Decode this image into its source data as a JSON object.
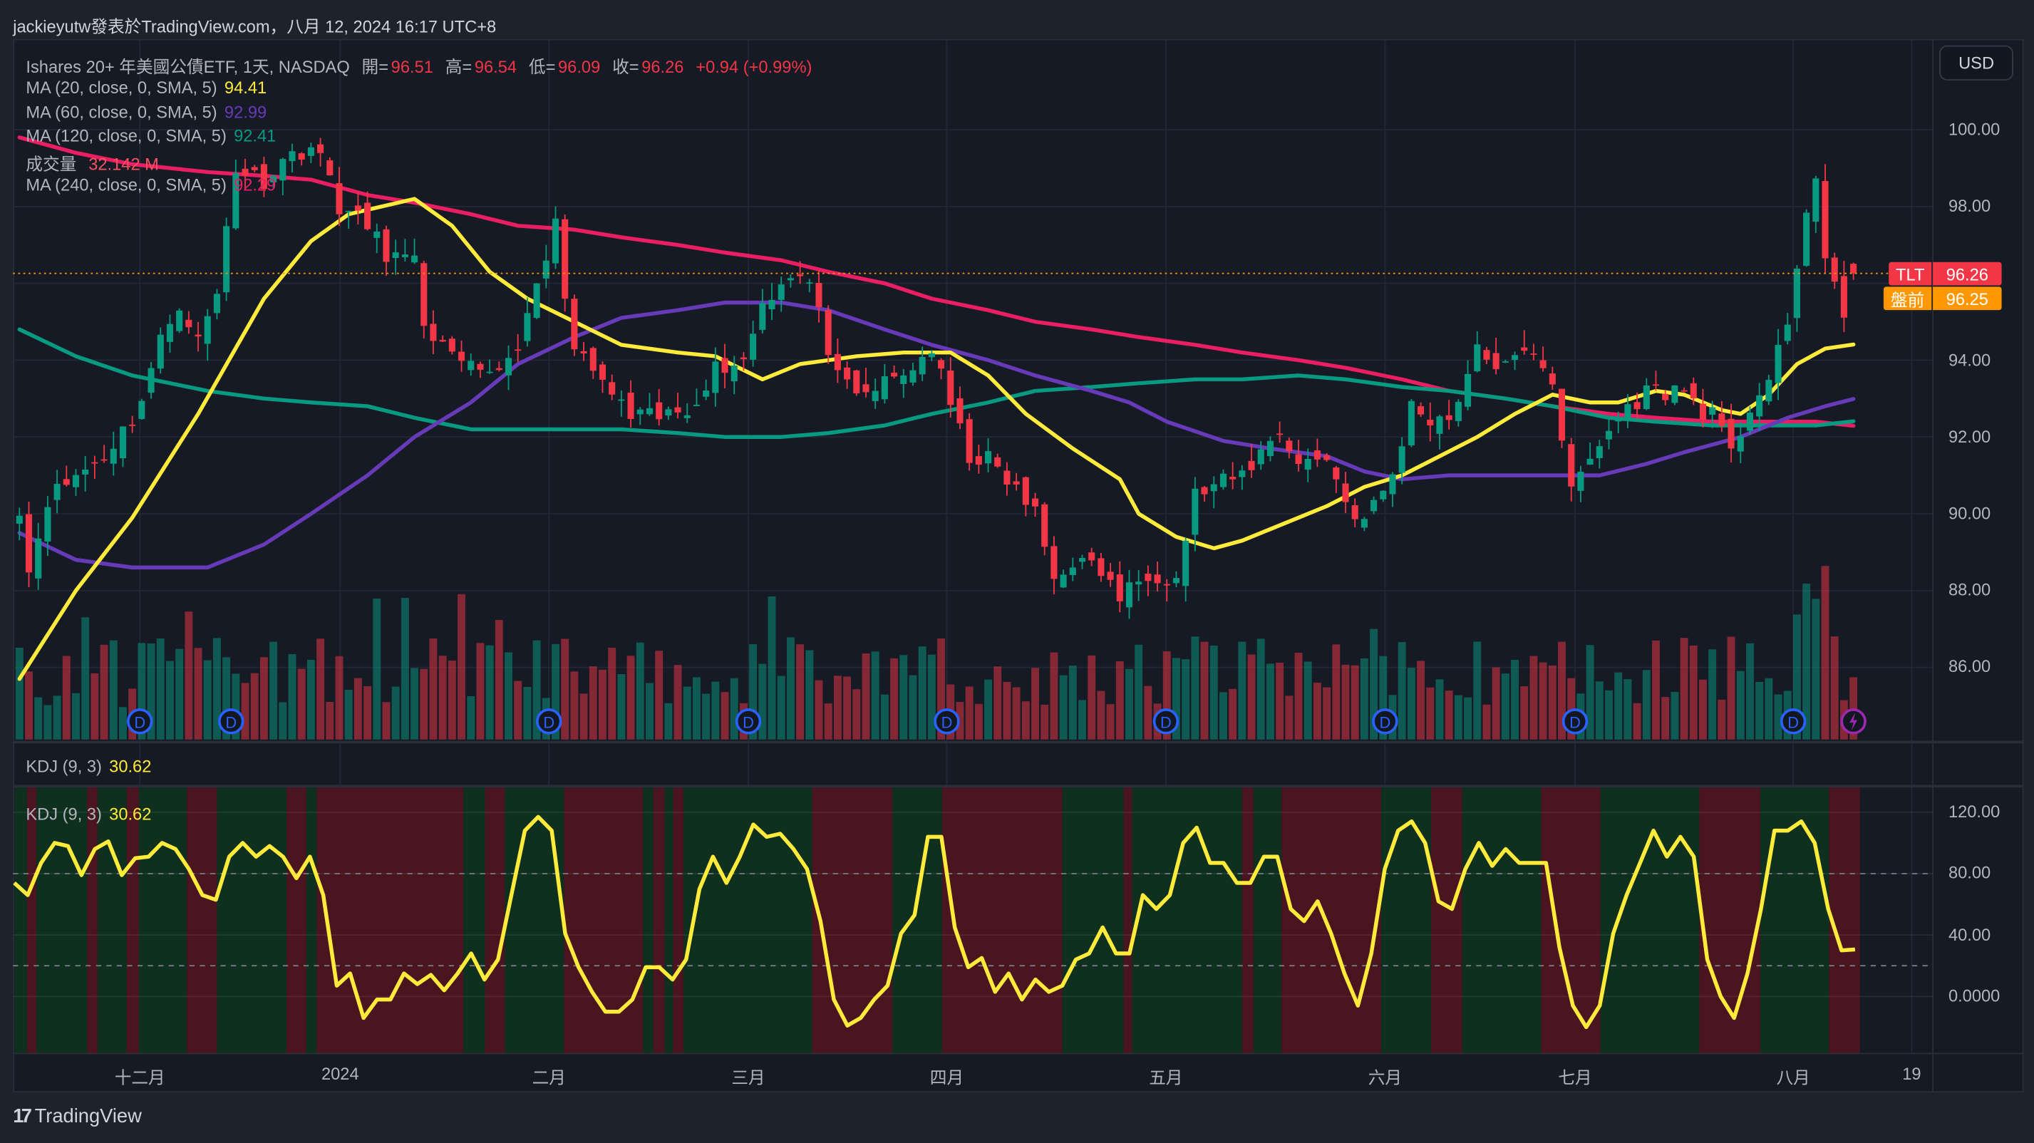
{
  "title_bar": "jackieyutw發表於TradingView.com，八月 12, 2024 16:17 UTC+8",
  "legend": {
    "symbol": "Ishares 20+ 年美國公債ETF, 1天, NASDAQ",
    "open_label": "開=",
    "open": "96.51",
    "high_label": "高=",
    "high": "96.54",
    "low_label": "低=",
    "low": "96.09",
    "close_label": "收=",
    "close": "96.26",
    "change": "+0.94 (+0.99%)",
    "ma20_label": "MA (20, close, 0, SMA, 5)",
    "ma20_value": "94.41",
    "ma60_label": "MA (60, close, 0, SMA, 5)",
    "ma60_value": "92.99",
    "ma120_label": "MA (120, close, 0, SMA, 5)",
    "ma120_value": "92.41",
    "volume_label": "成交量",
    "volume_value": "32.142 M",
    "ma240_label": "MA (240, close, 0, SMA, 5)",
    "ma240_value": "92.29"
  },
  "currency_button": "USD",
  "price_badges": {
    "symbol": "TLT",
    "last": "96.26",
    "premarket_label": "盤前",
    "premarket": "96.25"
  },
  "kdj_legend": {
    "label": "KDJ (9, 3)",
    "value": "30.62"
  },
  "footer_brand": "TradingView",
  "footer_logo": "17",
  "colors": {
    "up": "#089981",
    "down": "#f23645",
    "ma20": "#ffeb3b",
    "ma60": "#673ab7",
    "ma120": "#089981",
    "ma240": "#e91e63",
    "premarket": "#ff9800",
    "bull_band": "#0f301e",
    "bear_band": "#4a151e"
  },
  "chart_data": {
    "type": "candlestick",
    "symbol": "TLT",
    "timeframe": "1D",
    "price_axis": {
      "ylim": [
        84.8,
        102.3
      ],
      "ticks": [
        "100.00",
        "98.00",
        "94.00",
        "92.00",
        "90.00",
        "88.00",
        "86.00"
      ],
      "tick_values": [
        100,
        98,
        94,
        92,
        90,
        88,
        86
      ]
    },
    "time_axis": [
      {
        "label": "十二月",
        "day": 12.8
      },
      {
        "label": "2024",
        "day": 34.1
      },
      {
        "label": "二月",
        "day": 56.3
      },
      {
        "label": "三月",
        "day": 77.5
      },
      {
        "label": "四月",
        "day": 98.6
      },
      {
        "label": "五月",
        "day": 121.9
      },
      {
        "label": "六月",
        "day": 145.2
      },
      {
        "label": "七月",
        "day": 165.4
      },
      {
        "label": "八月",
        "day": 188.6
      },
      {
        "label": "19",
        "day": 201.2
      }
    ],
    "num_days": 196,
    "close_keyframes": [
      [
        0,
        90.2
      ],
      [
        1,
        88.5
      ],
      [
        3,
        90.4
      ],
      [
        6,
        91
      ],
      [
        9,
        91.5
      ],
      [
        12,
        92.5
      ],
      [
        13,
        93
      ],
      [
        15,
        94.5
      ],
      [
        17,
        95.5
      ],
      [
        19,
        94.5
      ],
      [
        21,
        95.7
      ],
      [
        22,
        97.5
      ],
      [
        23,
        99
      ],
      [
        26,
        98.7
      ],
      [
        28,
        99.2
      ],
      [
        31,
        99.6
      ],
      [
        33,
        98.8
      ],
      [
        34,
        98
      ],
      [
        37,
        97.5
      ],
      [
        39,
        96.8
      ],
      [
        42,
        96.5
      ],
      [
        43,
        95
      ],
      [
        46,
        94
      ],
      [
        49,
        93.6
      ],
      [
        52,
        94
      ],
      [
        54,
        95
      ],
      [
        57,
        97.5
      ],
      [
        59,
        94.2
      ],
      [
        61,
        93.7
      ],
      [
        65,
        92.5
      ],
      [
        68,
        92.5
      ],
      [
        71,
        92.7
      ],
      [
        74,
        93.8
      ],
      [
        77,
        94
      ],
      [
        79,
        95.5
      ],
      [
        82,
        96.3
      ],
      [
        84,
        96
      ],
      [
        87,
        93.5
      ],
      [
        89,
        93
      ],
      [
        92,
        93.4
      ],
      [
        94,
        93.6
      ],
      [
        97,
        94.3
      ],
      [
        99,
        92.8
      ],
      [
        101,
        91.5
      ],
      [
        103,
        91.4
      ],
      [
        106,
        90.6
      ],
      [
        108,
        90
      ],
      [
        110,
        88.3
      ],
      [
        112,
        88.8
      ],
      [
        115,
        88.5
      ],
      [
        117,
        87.8
      ],
      [
        120,
        88.5
      ],
      [
        123,
        88.3
      ],
      [
        125,
        90.5
      ],
      [
        128,
        90.8
      ],
      [
        130,
        91
      ],
      [
        134,
        92.2
      ],
      [
        136,
        91.3
      ],
      [
        139,
        91.5
      ],
      [
        141,
        90.3
      ],
      [
        143,
        89.8
      ],
      [
        146,
        91
      ],
      [
        148,
        92.8
      ],
      [
        150,
        92.5
      ],
      [
        152,
        92.5
      ],
      [
        155,
        94.2
      ],
      [
        158,
        93.8
      ],
      [
        161,
        94.3
      ],
      [
        163,
        93.5
      ],
      [
        165,
        90.5
      ],
      [
        166,
        91
      ],
      [
        168,
        91.8
      ],
      [
        170,
        92.5
      ],
      [
        173,
        93.2
      ],
      [
        177,
        93.2
      ],
      [
        179,
        92.7
      ],
      [
        180,
        92.6
      ],
      [
        182,
        91.5
      ],
      [
        184,
        92.8
      ],
      [
        186,
        93.5
      ],
      [
        188,
        94.8
      ],
      [
        190,
        98
      ],
      [
        191,
        98.7
      ],
      [
        192,
        96.6
      ],
      [
        193,
        95.8
      ],
      [
        194,
        95.2
      ],
      [
        195,
        96.26
      ]
    ],
    "last_candle": {
      "open": 96.51,
      "high": 96.54,
      "low": 96.09,
      "close": 96.26,
      "volume_m": 32.142
    },
    "ma_series": {
      "ma20": [
        [
          0,
          85.7
        ],
        [
          6,
          88
        ],
        [
          12,
          89.9
        ],
        [
          19,
          92.6
        ],
        [
          26,
          95.6
        ],
        [
          31,
          97.1
        ],
        [
          35,
          97.8
        ],
        [
          42,
          98.2
        ],
        [
          46,
          97.5
        ],
        [
          50,
          96.3
        ],
        [
          54,
          95.6
        ],
        [
          59,
          95
        ],
        [
          64,
          94.4
        ],
        [
          70,
          94.2
        ],
        [
          74,
          94.1
        ],
        [
          79,
          93.5
        ],
        [
          83,
          93.9
        ],
        [
          89,
          94.1
        ],
        [
          94,
          94.2
        ],
        [
          99,
          94.2
        ],
        [
          103,
          93.6
        ],
        [
          107,
          92.6
        ],
        [
          112,
          91.7
        ],
        [
          117,
          90.9
        ],
        [
          119,
          90
        ],
        [
          123,
          89.4
        ],
        [
          127,
          89.1
        ],
        [
          130,
          89.3
        ],
        [
          134,
          89.7
        ],
        [
          139,
          90.2
        ],
        [
          143,
          90.7
        ],
        [
          147,
          91
        ],
        [
          151,
          91.5
        ],
        [
          155,
          92
        ],
        [
          159,
          92.6
        ],
        [
          163,
          93.1
        ],
        [
          167,
          92.9
        ],
        [
          170,
          92.9
        ],
        [
          174,
          93.2
        ],
        [
          177,
          93.1
        ],
        [
          181,
          92.7
        ],
        [
          183,
          92.6
        ],
        [
          186,
          93.1
        ],
        [
          189,
          93.9
        ],
        [
          192,
          94.3
        ],
        [
          195,
          94.41
        ]
      ],
      "ma60": [
        [
          0,
          89.5
        ],
        [
          6,
          88.8
        ],
        [
          12,
          88.6
        ],
        [
          20,
          88.6
        ],
        [
          26,
          89.2
        ],
        [
          31,
          90
        ],
        [
          37,
          91
        ],
        [
          42,
          92
        ],
        [
          48,
          92.9
        ],
        [
          53,
          93.9
        ],
        [
          59,
          94.6
        ],
        [
          64,
          95.1
        ],
        [
          70,
          95.3
        ],
        [
          75,
          95.5
        ],
        [
          81,
          95.5
        ],
        [
          86,
          95.3
        ],
        [
          92,
          94.8
        ],
        [
          97,
          94.4
        ],
        [
          103,
          94
        ],
        [
          108,
          93.6
        ],
        [
          114,
          93.2
        ],
        [
          118,
          92.9
        ],
        [
          122,
          92.4
        ],
        [
          128,
          91.9
        ],
        [
          133,
          91.7
        ],
        [
          139,
          91.5
        ],
        [
          143,
          91.1
        ],
        [
          147,
          90.9
        ],
        [
          152,
          91
        ],
        [
          158,
          91
        ],
        [
          163,
          91
        ],
        [
          168,
          91
        ],
        [
          173,
          91.3
        ],
        [
          177,
          91.6
        ],
        [
          183,
          92
        ],
        [
          188,
          92.5
        ],
        [
          192,
          92.8
        ],
        [
          195,
          92.99
        ]
      ],
      "ma120": [
        [
          0,
          94.8
        ],
        [
          6,
          94.1
        ],
        [
          12,
          93.6
        ],
        [
          20,
          93.2
        ],
        [
          26,
          93
        ],
        [
          31,
          92.9
        ],
        [
          37,
          92.8
        ],
        [
          42,
          92.5
        ],
        [
          48,
          92.2
        ],
        [
          53,
          92.2
        ],
        [
          59,
          92.2
        ],
        [
          64,
          92.2
        ],
        [
          70,
          92.1
        ],
        [
          75,
          92
        ],
        [
          81,
          92
        ],
        [
          86,
          92.1
        ],
        [
          92,
          92.3
        ],
        [
          97,
          92.6
        ],
        [
          103,
          92.9
        ],
        [
          108,
          93.2
        ],
        [
          114,
          93.3
        ],
        [
          119,
          93.4
        ],
        [
          125,
          93.5
        ],
        [
          130,
          93.5
        ],
        [
          136,
          93.6
        ],
        [
          141,
          93.5
        ],
        [
          147,
          93.3
        ],
        [
          152,
          93.2
        ],
        [
          158,
          93
        ],
        [
          163,
          92.8
        ],
        [
          169,
          92.5
        ],
        [
          174,
          92.4
        ],
        [
          180,
          92.3
        ],
        [
          186,
          92.3
        ],
        [
          191,
          92.3
        ],
        [
          195,
          92.41
        ]
      ],
      "ma240": [
        [
          0,
          99.8
        ],
        [
          6,
          99.4
        ],
        [
          12,
          99.1
        ],
        [
          20,
          98.9
        ],
        [
          26,
          98.8
        ],
        [
          31,
          98.7
        ],
        [
          37,
          98.3
        ],
        [
          42,
          98.1
        ],
        [
          48,
          97.8
        ],
        [
          53,
          97.5
        ],
        [
          59,
          97.4
        ],
        [
          64,
          97.2
        ],
        [
          70,
          97
        ],
        [
          75,
          96.8
        ],
        [
          81,
          96.6
        ],
        [
          86,
          96.3
        ],
        [
          92,
          96
        ],
        [
          97,
          95.6
        ],
        [
          103,
          95.3
        ],
        [
          108,
          95
        ],
        [
          114,
          94.8
        ],
        [
          119,
          94.6
        ],
        [
          125,
          94.4
        ],
        [
          130,
          94.2
        ],
        [
          136,
          94
        ],
        [
          141,
          93.8
        ],
        [
          147,
          93.5
        ],
        [
          152,
          93.2
        ],
        [
          158,
          93
        ],
        [
          163,
          92.8
        ],
        [
          169,
          92.6
        ],
        [
          174,
          92.5
        ],
        [
          180,
          92.4
        ],
        [
          186,
          92.4
        ],
        [
          191,
          92.4
        ],
        [
          195,
          92.29
        ]
      ]
    },
    "dividend_marker_days": [
      12.8,
      22.5,
      56.3,
      77.5,
      98.6,
      121.9,
      145.2,
      165.4,
      188.6
    ],
    "dividend_marker_label": "D",
    "event_marker_day": 195,
    "kdj": {
      "axis_ticks": [
        "120.00",
        "80.00",
        "40.00",
        "0.0000"
      ],
      "tick_values": [
        120,
        80,
        40,
        0
      ],
      "levels": [
        80,
        20
      ],
      "ylim": [
        -37,
        136
      ],
      "values": [
        74,
        66,
        87,
        100,
        98,
        79,
        96,
        101,
        79,
        90,
        91,
        100,
        96,
        83,
        66,
        63,
        91,
        100,
        91,
        98,
        91,
        77,
        91,
        66,
        7,
        15,
        -14,
        -2,
        -2,
        15,
        8,
        14,
        4,
        15,
        28,
        11,
        24,
        66,
        108,
        117,
        108,
        41,
        19,
        3,
        -10,
        -10,
        -2,
        19,
        19,
        11,
        24,
        70,
        91,
        74,
        91,
        112,
        104,
        106,
        96,
        83,
        49,
        -2,
        -19,
        -14,
        -2,
        7,
        41,
        53,
        104,
        104,
        45,
        19,
        25,
        3,
        15,
        -2,
        11,
        3,
        7,
        24,
        28,
        45,
        28,
        28,
        66,
        57,
        66,
        100,
        110,
        87,
        87,
        74,
        74,
        91,
        91,
        57,
        49,
        62,
        41,
        15,
        -6,
        28,
        83,
        108,
        114,
        100,
        62,
        57,
        83,
        100,
        85,
        96,
        87,
        87,
        87,
        32,
        -6,
        -20,
        -6,
        41,
        66,
        87,
        108,
        91,
        104,
        91,
        24,
        0,
        -14,
        15,
        57,
        108,
        108,
        114,
        100,
        57,
        30,
        30.62
      ],
      "bands_start": "bull",
      "band_boundaries": [
        -0.5,
        0.8,
        1.8,
        7.2,
        8.3,
        11.4,
        12.7,
        17.8,
        21,
        28.4,
        30.5,
        31.6,
        47.2,
        49.5,
        51.6,
        57.9,
        66.3,
        67.4,
        68.6,
        69.5,
        70.6,
        84.3,
        92.8,
        98.1,
        110.9,
        117.4,
        118.3,
        130,
        131.2,
        134.2,
        144.8,
        150.1,
        153.4,
        161.8,
        168.1,
        178.6,
        185.1,
        192.4,
        195.7
      ]
    }
  }
}
